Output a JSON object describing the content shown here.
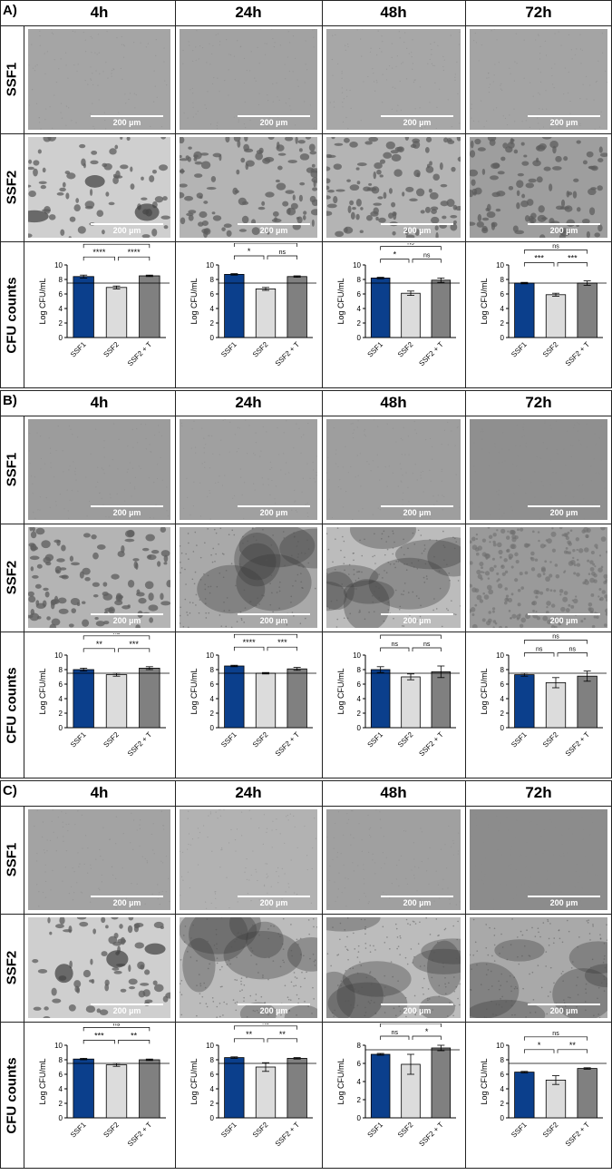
{
  "scale_label": "200 µm",
  "time_points": [
    "4h",
    "24h",
    "48h",
    "72h"
  ],
  "row_labels": {
    "ssf1": "SSF1",
    "ssf2": "SSF2",
    "cfu": "CFU counts"
  },
  "colors": {
    "ssf1": "#0b3f8c",
    "ssf2": "#dcdcdc",
    "ssf2t": "#808080"
  },
  "panels": [
    {
      "label": "A)",
      "ssf1_tone": [
        "#a5a5a5",
        "#a2a2a2",
        "#a7a7a7",
        "#a4a4a4"
      ],
      "ssf2_style": [
        "blob-light",
        "dots",
        "dots",
        "dots-dark"
      ],
      "charts": [
        {
          "ylabel": "Log CFU/mL",
          "ylim": [
            0,
            10
          ],
          "yticks": [
            "0",
            "2",
            "4",
            "6",
            "8",
            "10"
          ],
          "categories": [
            "SSF1",
            "SSF2",
            "SSF2 + T"
          ],
          "values": [
            8.4,
            6.9,
            8.5
          ],
          "errors": [
            0.2,
            0.2,
            0.1
          ],
          "reference": 7.5,
          "sig": {
            "a": "****",
            "b": "****",
            "top": "ns"
          }
        },
        {
          "ylabel": "Log CFU/mL",
          "ylim": [
            0,
            10
          ],
          "yticks": [
            "0",
            "2",
            "4",
            "6",
            "8",
            "10"
          ],
          "categories": [
            "SSF1",
            "SSF2",
            "SSF2 + T"
          ],
          "values": [
            8.7,
            6.7,
            8.4
          ],
          "errors": [
            0.1,
            0.2,
            0.1
          ],
          "reference": 7.5,
          "sig": {
            "a": "*",
            "b": "ns",
            "top": "ns"
          }
        },
        {
          "ylabel": "Log CFU/mL",
          "ylim": [
            0,
            10
          ],
          "yticks": [
            "0",
            "2",
            "4",
            "6",
            "8",
            "10"
          ],
          "categories": [
            "SSF1",
            "SSF2",
            "SSF2 + T"
          ],
          "values": [
            8.2,
            6.1,
            7.9
          ],
          "errors": [
            0.1,
            0.3,
            0.3
          ],
          "reference": 7.5,
          "sig": {
            "a": "*",
            "b": "ns",
            "top": "ns"
          }
        },
        {
          "ylabel": "Log CFU/mL",
          "ylim": [
            0,
            10
          ],
          "yticks": [
            "0",
            "2",
            "4",
            "6",
            "8",
            "10"
          ],
          "categories": [
            "SSF1",
            "SSF2",
            "SSF2 + T"
          ],
          "values": [
            7.5,
            5.9,
            7.5
          ],
          "errors": [
            0.1,
            0.2,
            0.3
          ],
          "reference": 7.5,
          "sig": {
            "a": "***",
            "b": "***",
            "top": "ns"
          }
        }
      ]
    },
    {
      "label": "B)",
      "ssf1_tone": [
        "#9c9c9c",
        "#a0a0a0",
        "#9e9e9e",
        "#8f8f8f"
      ],
      "ssf2_style": [
        "dots",
        "haze",
        "haze-dark",
        "texture"
      ],
      "charts": [
        {
          "ylabel": "Log CFU/mL",
          "ylim": [
            0,
            10
          ],
          "yticks": [
            "0",
            "2",
            "4",
            "6",
            "8",
            "10"
          ],
          "categories": [
            "SSF1",
            "SSF2",
            "SSF2 + T"
          ],
          "values": [
            8.0,
            7.3,
            8.2
          ],
          "errors": [
            0.2,
            0.2,
            0.2
          ],
          "reference": 7.5,
          "sig": {
            "a": "**",
            "b": "***",
            "top": "ns"
          }
        },
        {
          "ylabel": "Log CFU/mL",
          "ylim": [
            0,
            10
          ],
          "yticks": [
            "0",
            "2",
            "4",
            "6",
            "8",
            "10"
          ],
          "categories": [
            "SSF1",
            "SSF2",
            "SSF2 + T"
          ],
          "values": [
            8.5,
            7.5,
            8.1
          ],
          "errors": [
            0.1,
            0.1,
            0.2
          ],
          "reference": 7.5,
          "sig": {
            "a": "****",
            "b": "***",
            "top": "*"
          }
        },
        {
          "ylabel": "Log CFU/mL",
          "ylim": [
            0,
            10
          ],
          "yticks": [
            "0",
            "2",
            "4",
            "6",
            "8",
            "10"
          ],
          "categories": [
            "SSF1",
            "SSF2",
            "SSF2 + T"
          ],
          "values": [
            8.0,
            7.0,
            7.7
          ],
          "errors": [
            0.4,
            0.4,
            0.8
          ],
          "reference": 7.5,
          "sig": {
            "a": "ns",
            "b": "ns",
            "top": "ns"
          }
        },
        {
          "ylabel": "Log CFU/mL",
          "ylim": [
            0,
            10
          ],
          "yticks": [
            "0",
            "2",
            "4",
            "6",
            "8",
            "10"
          ],
          "categories": [
            "SSF1",
            "SSF2",
            "SSF2 + T"
          ],
          "values": [
            7.3,
            6.2,
            7.1
          ],
          "errors": [
            0.2,
            0.7,
            0.7
          ],
          "reference": 7.5,
          "sig": {
            "a": "ns",
            "b": "ns",
            "top": "ns"
          }
        }
      ]
    },
    {
      "label": "C)",
      "ssf1_tone": [
        "#a3a3a3",
        "#b2b2b2",
        "#a0a0a0",
        "#8c8c8c"
      ],
      "ssf2_style": [
        "blob-light",
        "haze-dark",
        "haze-dark",
        "haze"
      ],
      "charts": [
        {
          "ylabel": "Log CFU/mL",
          "ylim": [
            0,
            10
          ],
          "yticks": [
            "0",
            "2",
            "4",
            "6",
            "8",
            "10"
          ],
          "categories": [
            "SSF1",
            "SSF2",
            "SSF2 + T"
          ],
          "values": [
            8.1,
            7.3,
            8.0
          ],
          "errors": [
            0.1,
            0.2,
            0.1
          ],
          "reference": 7.5,
          "sig": {
            "a": "***",
            "b": "**",
            "top": "ns"
          }
        },
        {
          "ylabel": "Log CFU/mL",
          "ylim": [
            0,
            10
          ],
          "yticks": [
            "0",
            "2",
            "4",
            "6",
            "8",
            "10"
          ],
          "categories": [
            "SSF1",
            "SSF2",
            "SSF2 + T"
          ],
          "values": [
            8.3,
            7.0,
            8.2
          ],
          "errors": [
            0.1,
            0.6,
            0.1
          ],
          "reference": 7.5,
          "sig": {
            "a": "**",
            "b": "**",
            "top": "ns"
          }
        },
        {
          "ylabel": "Log CFU/mL",
          "ylim": [
            0,
            8
          ],
          "yticks": [
            "0",
            "2",
            "4",
            "6",
            "8"
          ],
          "categories": [
            "SSF1",
            "SSF2",
            "SSF2 + T"
          ],
          "values": [
            7.0,
            5.9,
            7.7
          ],
          "errors": [
            0.1,
            1.1,
            0.3
          ],
          "reference": 7.5,
          "sig": {
            "a": "ns",
            "b": "*",
            "top": "ns"
          }
        },
        {
          "ylabel": "Log CFU/mL",
          "ylim": [
            0,
            10
          ],
          "yticks": [
            "0",
            "2",
            "4",
            "6",
            "8",
            "10"
          ],
          "categories": [
            "SSF1",
            "SSF2",
            "SSF2 + T"
          ],
          "values": [
            6.3,
            5.2,
            6.8
          ],
          "errors": [
            0.1,
            0.6,
            0.1
          ],
          "reference": 7.5,
          "sig": {
            "a": "*",
            "b": "**",
            "top": "ns"
          }
        }
      ]
    }
  ],
  "chart_data": [
    {
      "type": "bar",
      "panel": "A",
      "time": "4h",
      "categories": [
        "SSF1",
        "SSF2",
        "SSF2 + T"
      ],
      "values": [
        8.4,
        6.9,
        8.5
      ],
      "ylabel": "Log CFU/mL",
      "ylim": [
        0,
        10
      ]
    },
    {
      "type": "bar",
      "panel": "A",
      "time": "24h",
      "categories": [
        "SSF1",
        "SSF2",
        "SSF2 + T"
      ],
      "values": [
        8.7,
        6.7,
        8.4
      ],
      "ylabel": "Log CFU/mL",
      "ylim": [
        0,
        10
      ]
    },
    {
      "type": "bar",
      "panel": "A",
      "time": "48h",
      "categories": [
        "SSF1",
        "SSF2",
        "SSF2 + T"
      ],
      "values": [
        8.2,
        6.1,
        7.9
      ],
      "ylabel": "Log CFU/mL",
      "ylim": [
        0,
        10
      ]
    },
    {
      "type": "bar",
      "panel": "A",
      "time": "72h",
      "categories": [
        "SSF1",
        "SSF2",
        "SSF2 + T"
      ],
      "values": [
        7.5,
        5.9,
        7.5
      ],
      "ylabel": "Log CFU/mL",
      "ylim": [
        0,
        10
      ]
    },
    {
      "type": "bar",
      "panel": "B",
      "time": "4h",
      "categories": [
        "SSF1",
        "SSF2",
        "SSF2 + T"
      ],
      "values": [
        8.0,
        7.3,
        8.2
      ],
      "ylabel": "Log CFU/mL",
      "ylim": [
        0,
        10
      ]
    },
    {
      "type": "bar",
      "panel": "B",
      "time": "24h",
      "categories": [
        "SSF1",
        "SSF2",
        "SSF2 + T"
      ],
      "values": [
        8.5,
        7.5,
        8.1
      ],
      "ylabel": "Log CFU/mL",
      "ylim": [
        0,
        10
      ]
    },
    {
      "type": "bar",
      "panel": "B",
      "time": "48h",
      "categories": [
        "SSF1",
        "SSF2",
        "SSF2 + T"
      ],
      "values": [
        8.0,
        7.0,
        7.7
      ],
      "ylabel": "Log CFU/mL",
      "ylim": [
        0,
        10
      ]
    },
    {
      "type": "bar",
      "panel": "B",
      "time": "72h",
      "categories": [
        "SSF1",
        "SSF2",
        "SSF2 + T"
      ],
      "values": [
        7.3,
        6.2,
        7.1
      ],
      "ylabel": "Log CFU/mL",
      "ylim": [
        0,
        10
      ]
    },
    {
      "type": "bar",
      "panel": "C",
      "time": "4h",
      "categories": [
        "SSF1",
        "SSF2",
        "SSF2 + T"
      ],
      "values": [
        8.1,
        7.3,
        8.0
      ],
      "ylabel": "Log CFU/mL",
      "ylim": [
        0,
        10
      ]
    },
    {
      "type": "bar",
      "panel": "C",
      "time": "24h",
      "categories": [
        "SSF1",
        "SSF2",
        "SSF2 + T"
      ],
      "values": [
        8.3,
        7.0,
        8.2
      ],
      "ylabel": "Log CFU/mL",
      "ylim": [
        0,
        10
      ]
    },
    {
      "type": "bar",
      "panel": "C",
      "time": "48h",
      "categories": [
        "SSF1",
        "SSF2",
        "SSF2 + T"
      ],
      "values": [
        7.0,
        5.9,
        7.7
      ],
      "ylabel": "Log CFU/mL",
      "ylim": [
        0,
        8
      ]
    },
    {
      "type": "bar",
      "panel": "C",
      "time": "72h",
      "categories": [
        "SSF1",
        "SSF2",
        "SSF2 + T"
      ],
      "values": [
        6.3,
        5.2,
        6.8
      ],
      "ylabel": "Log CFU/mL",
      "ylim": [
        0,
        10
      ]
    }
  ]
}
